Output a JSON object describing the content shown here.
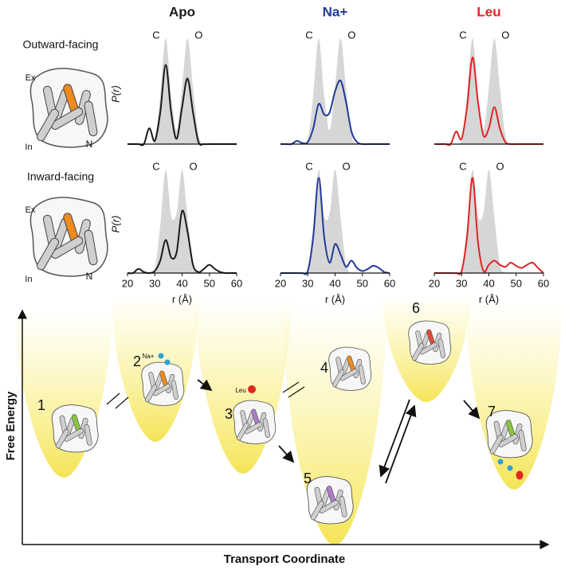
{
  "chart_data": [
    {
      "type": "line",
      "title": "Apo",
      "xlim": [
        20,
        60
      ],
      "ylim": [
        0,
        1.1
      ],
      "y_label": "P(r)",
      "annotations": [
        "C",
        "O"
      ],
      "x": [
        20,
        22,
        24,
        26,
        28,
        30,
        32,
        34,
        36,
        38,
        40,
        42,
        44,
        46,
        48,
        50,
        52,
        54,
        56,
        58,
        60
      ],
      "series": [
        {
          "color": "#d6d6d6",
          "fill": true,
          "values": [
            0,
            0,
            0,
            0,
            0,
            0.04,
            0.46,
            1,
            0.46,
            0.13,
            0.54,
            1,
            0.54,
            0.09,
            0,
            0,
            0,
            0,
            0,
            0,
            0
          ]
        },
        {
          "color": "#1a1a1a",
          "values": [
            0,
            0,
            0,
            0,
            0.15,
            0.03,
            0.3,
            0.75,
            0.3,
            0.05,
            0.35,
            0.62,
            0.3,
            0.02,
            0,
            0,
            0,
            0,
            0,
            0,
            0
          ]
        }
      ]
    },
    {
      "type": "line",
      "title": "Na+",
      "xlim": [
        20,
        60
      ],
      "ylim": [
        0,
        1.1
      ],
      "annotations": [
        "C",
        "O"
      ],
      "x": [
        20,
        22,
        24,
        26,
        28,
        30,
        32,
        34,
        36,
        38,
        40,
        42,
        44,
        46,
        48,
        50,
        52,
        54,
        56,
        58,
        60
      ],
      "series": [
        {
          "color": "#d6d6d6",
          "fill": true,
          "values": [
            0,
            0,
            0,
            0,
            0,
            0.04,
            0.46,
            1,
            0.46,
            0.13,
            0.54,
            1,
            0.54,
            0.09,
            0,
            0,
            0,
            0,
            0,
            0,
            0
          ]
        },
        {
          "color": "#22399a",
          "values": [
            0,
            0,
            0,
            0.03,
            0.01,
            0.02,
            0.15,
            0.38,
            0.28,
            0.3,
            0.5,
            0.6,
            0.4,
            0.12,
            0.02,
            0,
            0,
            0,
            0,
            0,
            0
          ]
        }
      ]
    },
    {
      "type": "line",
      "title": "Leu",
      "xlim": [
        20,
        60
      ],
      "ylim": [
        0,
        1.1
      ],
      "annotations": [
        "C",
        "O"
      ],
      "x": [
        20,
        22,
        24,
        26,
        28,
        30,
        32,
        34,
        36,
        38,
        40,
        42,
        44,
        46,
        48,
        50,
        52,
        54,
        56,
        58,
        60
      ],
      "series": [
        {
          "color": "#d6d6d6",
          "fill": true,
          "values": [
            0,
            0,
            0,
            0,
            0,
            0.04,
            0.46,
            1,
            0.46,
            0.13,
            0.54,
            1,
            0.54,
            0.09,
            0,
            0,
            0,
            0,
            0,
            0,
            0
          ]
        },
        {
          "color": "#e02424",
          "values": [
            0,
            0,
            0,
            0,
            0.12,
            0.05,
            0.35,
            0.82,
            0.4,
            0.08,
            0.15,
            0.35,
            0.15,
            0.02,
            0,
            0,
            0,
            0,
            0,
            0,
            0
          ]
        }
      ]
    },
    {
      "type": "line",
      "xlim": [
        20,
        60
      ],
      "ylim": [
        0,
        1.1
      ],
      "y_label": "P(r)",
      "x_label": "r (Å)",
      "annotations": [
        "C",
        "O"
      ],
      "xticks": [
        20,
        30,
        40,
        50,
        60
      ],
      "x": [
        20,
        22,
        24,
        26,
        28,
        30,
        32,
        34,
        36,
        38,
        40,
        42,
        44,
        46,
        48,
        50,
        52,
        54,
        56,
        58,
        60
      ],
      "series": [
        {
          "color": "#d6d6d6",
          "fill": true,
          "values": [
            0,
            0,
            0,
            0,
            0,
            0.04,
            0.46,
            1,
            0.55,
            0.58,
            1,
            0.54,
            0.09,
            0,
            0,
            0,
            0,
            0,
            0,
            0,
            0
          ]
        },
        {
          "color": "#1a1a1a",
          "values": [
            0,
            0,
            0.04,
            0.01,
            0,
            0.02,
            0.12,
            0.32,
            0.15,
            0.2,
            0.6,
            0.4,
            0.08,
            0.01,
            0.04,
            0.08,
            0.04,
            0.01,
            0,
            0,
            0
          ]
        }
      ]
    },
    {
      "type": "line",
      "xlim": [
        20,
        60
      ],
      "ylim": [
        0,
        1.1
      ],
      "x_label": "r (Å)",
      "annotations": [
        "C",
        "O"
      ],
      "xticks": [
        20,
        30,
        40,
        50,
        60
      ],
      "x": [
        20,
        22,
        24,
        26,
        28,
        30,
        32,
        34,
        36,
        38,
        40,
        42,
        44,
        46,
        48,
        50,
        52,
        54,
        56,
        58,
        60
      ],
      "series": [
        {
          "color": "#d6d6d6",
          "fill": true,
          "values": [
            0,
            0,
            0,
            0,
            0,
            0.04,
            0.46,
            1,
            0.55,
            0.58,
            1,
            0.54,
            0.09,
            0,
            0,
            0,
            0,
            0,
            0,
            0,
            0
          ]
        },
        {
          "color": "#22399a",
          "values": [
            0,
            0,
            0,
            0,
            0,
            0.02,
            0.35,
            0.92,
            0.35,
            0.1,
            0.28,
            0.18,
            0.06,
            0.12,
            0.05,
            0.02,
            0.04,
            0.07,
            0.05,
            0.01,
            0
          ]
        }
      ]
    },
    {
      "type": "line",
      "xlim": [
        20,
        60
      ],
      "ylim": [
        0,
        1.1
      ],
      "x_label": "r (Å)",
      "annotations": [
        "C",
        "O"
      ],
      "xticks": [
        20,
        30,
        40,
        50,
        60
      ],
      "x": [
        20,
        22,
        24,
        26,
        28,
        30,
        32,
        34,
        36,
        38,
        40,
        42,
        44,
        46,
        48,
        50,
        52,
        54,
        56,
        58,
        60
      ],
      "series": [
        {
          "color": "#d6d6d6",
          "fill": true,
          "values": [
            0,
            0,
            0,
            0,
            0,
            0.04,
            0.46,
            1,
            0.55,
            0.58,
            1,
            0.54,
            0.09,
            0,
            0,
            0,
            0,
            0,
            0,
            0,
            0
          ]
        },
        {
          "color": "#e02424",
          "values": [
            0,
            0,
            0,
            0,
            0,
            0.02,
            0.35,
            0.92,
            0.3,
            0.02,
            0.08,
            0.12,
            0.08,
            0.06,
            0.1,
            0.07,
            0.05,
            0.08,
            0.1,
            0.05,
            0
          ]
        }
      ]
    }
  ],
  "structures": [
    {
      "label": "Outward-facing",
      "ex": "Ex",
      "in": "In",
      "n": "N"
    },
    {
      "label": "Inward-facing",
      "ex": "Ex",
      "in": "In",
      "n": "N"
    }
  ],
  "diagram": {
    "y_label": "Free Energy",
    "x_label": "Transport Coordinate",
    "states": [
      "1",
      "2",
      "3",
      "4",
      "5",
      "6",
      "7"
    ],
    "na_label": "Na+",
    "leu_label": "Leu"
  }
}
